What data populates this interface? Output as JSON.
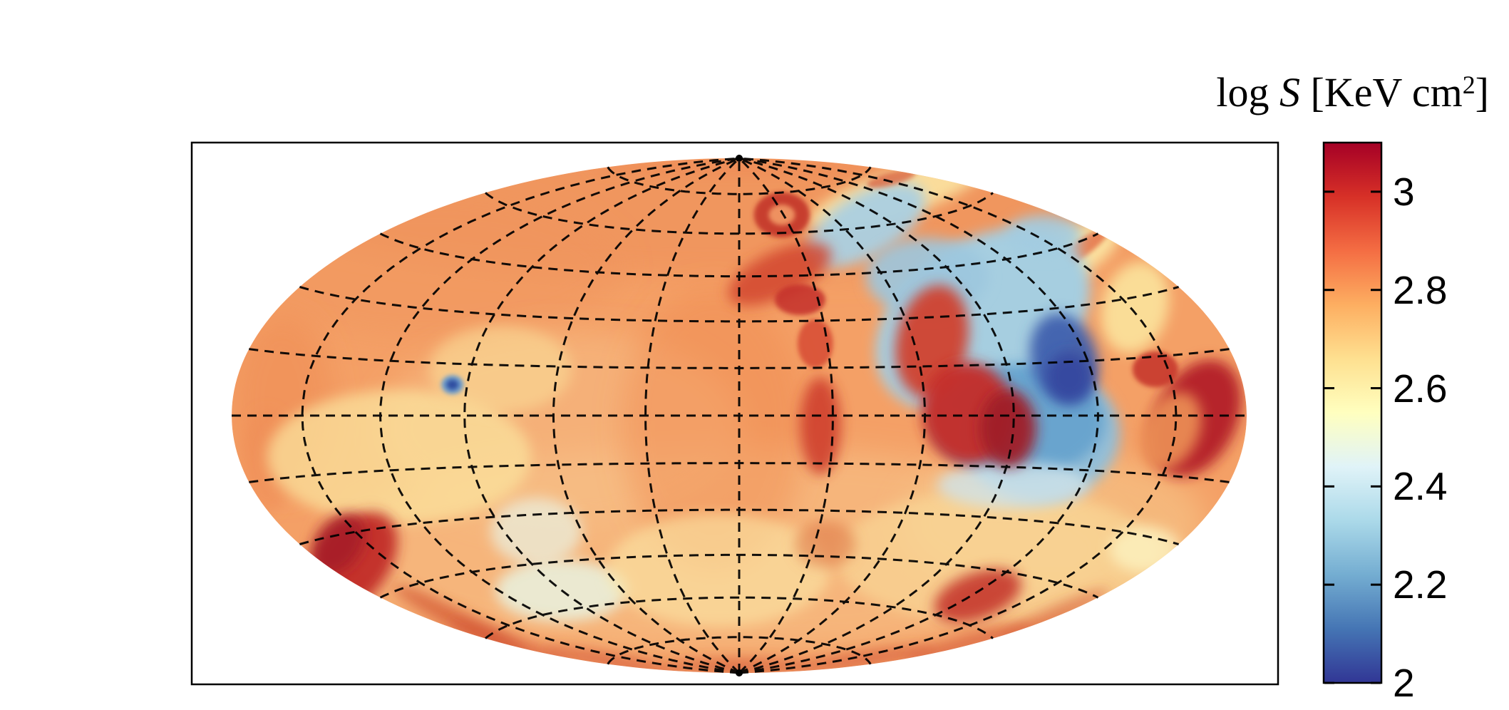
{
  "colorbar_title": {
    "prefix": "log ",
    "symbol": "S",
    "mid": " [KeV cm",
    "sup": "2",
    "suffix": "]"
  },
  "chart_data": {
    "type": "heatmap",
    "title": "log S [KeV cm^2]",
    "quantity": "log entropy",
    "units": "KeV cm^2",
    "projection": "hammer-aitoff",
    "grid": "dashed graticule",
    "graticule": {
      "meridian_step_deg": 30,
      "parallel_step_deg": 15,
      "parallel_max_deg": 75,
      "style": "dashed"
    },
    "colorbar": {
      "orientation": "vertical",
      "position": "right",
      "range": [
        2,
        3.1
      ],
      "tick_values": [
        3,
        2.8,
        2.6,
        2.4,
        2.2,
        2
      ],
      "tick_labels": [
        "3",
        "2.8",
        "2.6",
        "2.4",
        "2.2",
        "2"
      ],
      "colormap_name": "RdYlBu_r",
      "colormap_stops": [
        {
          "t": 0.0,
          "c": "#313695"
        },
        {
          "t": 0.1,
          "c": "#4575b4"
        },
        {
          "t": 0.2,
          "c": "#74add1"
        },
        {
          "t": 0.3,
          "c": "#abd9e9"
        },
        {
          "t": 0.4,
          "c": "#e0f3f8"
        },
        {
          "t": 0.5,
          "c": "#ffffbf"
        },
        {
          "t": 0.6,
          "c": "#fee090"
        },
        {
          "t": 0.7,
          "c": "#fdae61"
        },
        {
          "t": 0.8,
          "c": "#f46d43"
        },
        {
          "t": 0.9,
          "c": "#d73027"
        },
        {
          "t": 1.0,
          "c": "#a50026"
        }
      ]
    },
    "background_level": 2.75,
    "base_color": "#f4a066",
    "features": [
      {
        "name": "north-cap-tint",
        "u": 0.0,
        "v": -0.8,
        "ru": 0.92,
        "rv": 0.26,
        "rot": 0,
        "c": "#ef9058",
        "o": 0.6,
        "s": "l",
        "level": 2.8
      },
      {
        "name": "northwest-tint",
        "u": -0.61,
        "v": -0.58,
        "ru": 0.38,
        "rv": 0.28,
        "rot": 0,
        "c": "#f0935c",
        "o": 0.5,
        "s": "l",
        "level": 2.8
      },
      {
        "name": "south-lighten",
        "u": -0.03,
        "v": 0.52,
        "ru": 0.78,
        "rv": 0.4,
        "rot": 0,
        "c": "#f7c68c",
        "o": 0.55,
        "s": "l",
        "level": 2.65
      },
      {
        "name": "centerleft-lighten",
        "u": -0.35,
        "v": 0.05,
        "ru": 0.36,
        "rv": 0.38,
        "rot": 0,
        "c": "#f7c289",
        "o": 0.5,
        "s": "l",
        "level": 2.65
      },
      {
        "name": "central-column",
        "u": -0.05,
        "v": 0.05,
        "ru": 0.18,
        "rv": 0.55,
        "rot": 0,
        "c": "#ef8a50",
        "o": 0.45,
        "s": "l",
        "level": 2.8
      },
      {
        "name": "west-limb-band",
        "u": -0.9,
        "v": -0.05,
        "ru": 0.1,
        "rv": 0.35,
        "rot": 0,
        "c": "#ee8a52",
        "o": 0.55,
        "s": "l",
        "level": 2.8
      },
      {
        "name": "southeast-lighten",
        "u": 0.62,
        "v": 0.42,
        "ru": 0.3,
        "rv": 0.28,
        "rot": 0,
        "c": "#f8cf92",
        "o": 0.5,
        "s": "l",
        "level": 2.62
      },
      {
        "name": "north-rim",
        "u": 0.0,
        "v": -0.965,
        "ru": 0.3,
        "rv": 0.03,
        "rot": 0,
        "c": "#ee8752",
        "o": 0.5,
        "s": "m",
        "level": 2.82
      },
      {
        "name": "west-rim",
        "u": -0.93,
        "v": 0.18,
        "ru": 0.05,
        "rv": 0.2,
        "rot": 0,
        "c": "#ef8d55",
        "o": 0.5,
        "s": "m",
        "level": 2.8
      },
      {
        "name": "pale-west-patch",
        "u": -0.67,
        "v": 0.16,
        "ru": 0.26,
        "rv": 0.26,
        "rot": 0,
        "c": "#fbe19c",
        "o": 0.75,
        "s": "m",
        "level": 2.6
      },
      {
        "name": "pale-west-small",
        "u": -0.47,
        "v": -0.18,
        "ru": 0.14,
        "rv": 0.17,
        "rot": 0,
        "c": "#fadc96",
        "o": 0.6,
        "s": "m",
        "level": 2.6
      },
      {
        "name": "pale-green-sw",
        "u": -0.35,
        "v": 0.68,
        "ru": 0.13,
        "rv": 0.12,
        "rot": 0,
        "c": "#e9f2df",
        "o": 0.85,
        "s": "m",
        "level": 2.5
      },
      {
        "name": "pale-green-sw2",
        "u": -0.4,
        "v": 0.45,
        "ru": 0.09,
        "rv": 0.13,
        "rot": 0,
        "c": "#eaf2e2",
        "o": 0.7,
        "s": "m",
        "level": 2.5
      },
      {
        "name": "pale-south-center",
        "u": -0.04,
        "v": 0.6,
        "ru": 0.22,
        "rv": 0.22,
        "rot": 0,
        "c": "#fbe7a6",
        "o": 0.6,
        "s": "m",
        "level": 2.58
      },
      {
        "name": "pale-southeast",
        "u": 0.51,
        "v": 0.55,
        "ru": 0.32,
        "rv": 0.26,
        "rot": 0,
        "c": "#f9d998",
        "o": 0.65,
        "s": "m",
        "level": 2.6
      },
      {
        "name": "pale-ne-rim",
        "u": 0.62,
        "v": -0.6,
        "ru": 0.14,
        "rv": 0.1,
        "rot": -25,
        "c": "#fdeeaa",
        "o": 0.85,
        "s": "m",
        "level": 2.56
      },
      {
        "name": "pale-above-plume",
        "u": 0.31,
        "v": -0.86,
        "ru": 0.18,
        "rv": 0.09,
        "rot": -18,
        "c": "#fdeeaa",
        "o": 0.8,
        "s": "m",
        "level": 2.56
      },
      {
        "name": "pale-east-of-plume",
        "u": 0.78,
        "v": -0.42,
        "ru": 0.065,
        "rv": 0.18,
        "rot": 15,
        "c": "#fbe7a0",
        "o": 0.85,
        "s": "m",
        "level": 2.58
      },
      {
        "name": "pale-se-edge",
        "u": 0.8,
        "v": 0.52,
        "ru": 0.07,
        "rv": 0.09,
        "rot": 0,
        "c": "#fdf3c0",
        "o": 0.8,
        "s": "m",
        "level": 2.55
      },
      {
        "name": "ne-orange-streak",
        "u": 0.66,
        "v": -0.63,
        "ru": 0.085,
        "rv": 0.035,
        "rot": -35,
        "c": "#e5744a",
        "o": 0.85,
        "s": "s",
        "level": 2.85
      },
      {
        "name": "cold-plume-main",
        "u": 0.48,
        "v": -0.37,
        "ru": 0.23,
        "rv": 0.31,
        "rot": -33,
        "c": "#a6cee0",
        "o": 1.0,
        "s": "m",
        "level": 2.35
      },
      {
        "name": "cold-plume-arm",
        "u": 0.25,
        "v": -0.74,
        "ru": 0.13,
        "rv": 0.12,
        "rot": -30,
        "c": "#abd0e2",
        "o": 0.95,
        "s": "m",
        "level": 2.35
      },
      {
        "name": "cold-plume-link",
        "u": 0.37,
        "v": -0.54,
        "ru": 0.12,
        "rv": 0.15,
        "rot": 0,
        "c": "#9cc7de",
        "o": 0.9,
        "s": "m",
        "level": 2.33
      },
      {
        "name": "cold-plume-lower",
        "u": 0.59,
        "v": 0.07,
        "ru": 0.16,
        "rv": 0.26,
        "rot": 0,
        "c": "#8fc0dc",
        "o": 0.95,
        "s": "m",
        "level": 2.32
      },
      {
        "name": "cold-patch-ne",
        "u": 0.6,
        "v": -0.7,
        "ru": 0.075,
        "rv": 0.08,
        "rot": 0,
        "c": "#a3cce1",
        "o": 0.9,
        "s": "m",
        "level": 2.35
      },
      {
        "name": "cold-plume-mid-blue",
        "u": 0.55,
        "v": 0.02,
        "ru": 0.17,
        "rv": 0.22,
        "rot": 0,
        "c": "#62a0cc",
        "o": 0.85,
        "s": "m",
        "level": 2.22
      },
      {
        "name": "cold-plume-pale-rim",
        "u": 0.54,
        "v": 0.27,
        "ru": 0.15,
        "rv": 0.09,
        "rot": 0,
        "c": "#cfe3ea",
        "o": 0.8,
        "s": "m",
        "level": 2.45
      },
      {
        "name": "cold-core",
        "u": 0.64,
        "v": -0.22,
        "ru": 0.065,
        "rv": 0.18,
        "rot": -15,
        "c": "#3f5fae",
        "o": 0.95,
        "s": "m",
        "level": 2.08
      },
      {
        "name": "cold-core-deep",
        "u": 0.65,
        "v": -0.15,
        "ru": 0.045,
        "rv": 0.095,
        "rot": 0,
        "c": "#33479f",
        "o": 0.9,
        "s": "m",
        "level": 2.03
      },
      {
        "name": "red-hook-a",
        "u": 0.38,
        "v": -0.29,
        "ru": 0.07,
        "rv": 0.22,
        "rot": 12,
        "c": "#d04030",
        "o": 0.95,
        "s": "m",
        "level": 2.92
      },
      {
        "name": "red-hook-b",
        "u": 0.45,
        "v": -0.01,
        "ru": 0.09,
        "rv": 0.2,
        "rot": -8,
        "c": "#c52d28",
        "o": 0.95,
        "s": "m",
        "level": 2.97
      },
      {
        "name": "red-hook-core",
        "u": 0.53,
        "v": 0.05,
        "ru": 0.055,
        "rv": 0.15,
        "rot": 0,
        "c": "#9f1b28",
        "o": 0.95,
        "s": "m",
        "level": 3.07
      },
      {
        "name": "red-ring-outer",
        "u": 0.084,
        "v": -0.78,
        "ru": 0.055,
        "rv": 0.088,
        "rot": 0,
        "c": "#c5392b",
        "o": 0.95,
        "s": "s",
        "level": 2.95
      },
      {
        "name": "red-ring-inner",
        "u": 0.084,
        "v": -0.78,
        "ru": 0.026,
        "rv": 0.04,
        "rot": 0,
        "c": "#ee9160",
        "o": 1.0,
        "s": "s",
        "level": 2.78
      },
      {
        "name": "red-band-center",
        "u": 0.08,
        "v": -0.55,
        "ru": 0.11,
        "rv": 0.09,
        "rot": -25,
        "c": "#d2452d",
        "o": 0.85,
        "s": "m",
        "level": 2.92
      },
      {
        "name": "red-band-core",
        "u": 0.12,
        "v": -0.45,
        "ru": 0.05,
        "rv": 0.06,
        "rot": 0,
        "c": "#c32f28",
        "o": 0.85,
        "s": "s",
        "level": 2.96
      },
      {
        "name": "red-streak-mid",
        "u": 0.16,
        "v": 0.04,
        "ru": 0.04,
        "rv": 0.19,
        "rot": 0,
        "c": "#cc3a2b",
        "o": 0.85,
        "s": "m",
        "level": 2.95
      },
      {
        "name": "red-streak-upper",
        "u": 0.15,
        "v": -0.28,
        "ru": 0.035,
        "rv": 0.095,
        "rot": 0,
        "c": "#d5452e",
        "o": 0.8,
        "s": "s",
        "level": 2.92
      },
      {
        "name": "red-blob-south",
        "u": 0.47,
        "v": 0.7,
        "ru": 0.09,
        "rv": 0.09,
        "rot": -20,
        "c": "#c5392b",
        "o": 0.9,
        "s": "m",
        "level": 2.95
      },
      {
        "name": "red-soft-south",
        "u": 0.17,
        "v": 0.5,
        "ru": 0.06,
        "rv": 0.09,
        "rot": 0,
        "c": "#e07a4a",
        "o": 0.6,
        "s": "m",
        "level": 2.82
      },
      {
        "name": "east-crescent",
        "u": 0.9,
        "v": 0.01,
        "ru": 0.08,
        "rv": 0.24,
        "rot": 26,
        "c": "#b32026",
        "o": 0.95,
        "s": "m",
        "level": 3.04
      },
      {
        "name": "east-crescent-carve",
        "u": 0.85,
        "v": 0.06,
        "ru": 0.055,
        "rv": 0.16,
        "rot": 26,
        "c": "#ec9055",
        "o": 0.9,
        "s": "m",
        "level": 2.78
      },
      {
        "name": "east-crescent-tip",
        "u": 0.82,
        "v": -0.18,
        "ru": 0.045,
        "rv": 0.07,
        "rot": 0,
        "c": "#c7392b",
        "o": 0.9,
        "s": "s",
        "level": 2.95
      },
      {
        "name": "sw-crescent",
        "u": -0.76,
        "v": 0.57,
        "ru": 0.07,
        "rv": 0.22,
        "rot": 36,
        "c": "#c12b28",
        "o": 0.95,
        "s": "m",
        "level": 2.98
      },
      {
        "name": "sw-crescent-core",
        "u": -0.79,
        "v": 0.5,
        "ru": 0.045,
        "rv": 0.13,
        "rot": 36,
        "c": "#a81e26",
        "o": 0.95,
        "s": "m",
        "level": 3.06
      },
      {
        "name": "sw-edge-rim",
        "u": -0.55,
        "v": 0.8,
        "ru": 0.15,
        "rv": 0.04,
        "rot": 28,
        "c": "#d2512f",
        "o": 0.7,
        "s": "m",
        "level": 2.9
      },
      {
        "name": "south-rim-1",
        "u": -0.45,
        "v": 0.885,
        "ru": 0.13,
        "rv": 0.032,
        "rot": 20,
        "c": "#d14e30",
        "o": 0.6,
        "s": "m",
        "level": 2.9
      },
      {
        "name": "south-rim-2",
        "u": -0.25,
        "v": 0.955,
        "ru": 0.14,
        "rv": 0.03,
        "rot": 10,
        "c": "#d14e30",
        "o": 0.6,
        "s": "m",
        "level": 2.9
      },
      {
        "name": "south-rim-3",
        "u": 0.0,
        "v": 0.975,
        "ru": 0.14,
        "rv": 0.03,
        "rot": 0,
        "c": "#d14e30",
        "o": 0.6,
        "s": "m",
        "level": 2.9
      },
      {
        "name": "south-rim-4",
        "u": 0.25,
        "v": 0.945,
        "ru": 0.14,
        "rv": 0.03,
        "rot": -8,
        "c": "#d14e30",
        "o": 0.6,
        "s": "m",
        "level": 2.9
      },
      {
        "name": "south-rim-5",
        "u": 0.45,
        "v": 0.885,
        "ru": 0.13,
        "rv": 0.032,
        "rot": -16,
        "c": "#d14e30",
        "o": 0.6,
        "s": "m",
        "level": 2.9
      },
      {
        "name": "south-rim-6",
        "u": 0.62,
        "v": 0.78,
        "ru": 0.12,
        "rv": 0.034,
        "rot": -25,
        "c": "#d14e30",
        "o": 0.55,
        "s": "m",
        "level": 2.9
      },
      {
        "name": "blue-dot-halo",
        "u": -0.565,
        "v": -0.12,
        "ru": 0.022,
        "rv": 0.037,
        "rot": 0,
        "c": "#6f9fcc",
        "o": 1.0,
        "s": "s",
        "level": 2.28
      },
      {
        "name": "blue-dot-core",
        "u": -0.565,
        "v": -0.12,
        "ru": 0.012,
        "rv": 0.02,
        "rot": 0,
        "c": "#2f4da0",
        "o": 1.0,
        "s": "s",
        "level": 2.06
      },
      {
        "name": "top-red-streak",
        "u": 0.3,
        "v": -0.92,
        "ru": 0.05,
        "rv": 0.025,
        "rot": -15,
        "c": "#d85a38",
        "o": 0.7,
        "s": "s",
        "level": 2.88
      }
    ]
  }
}
